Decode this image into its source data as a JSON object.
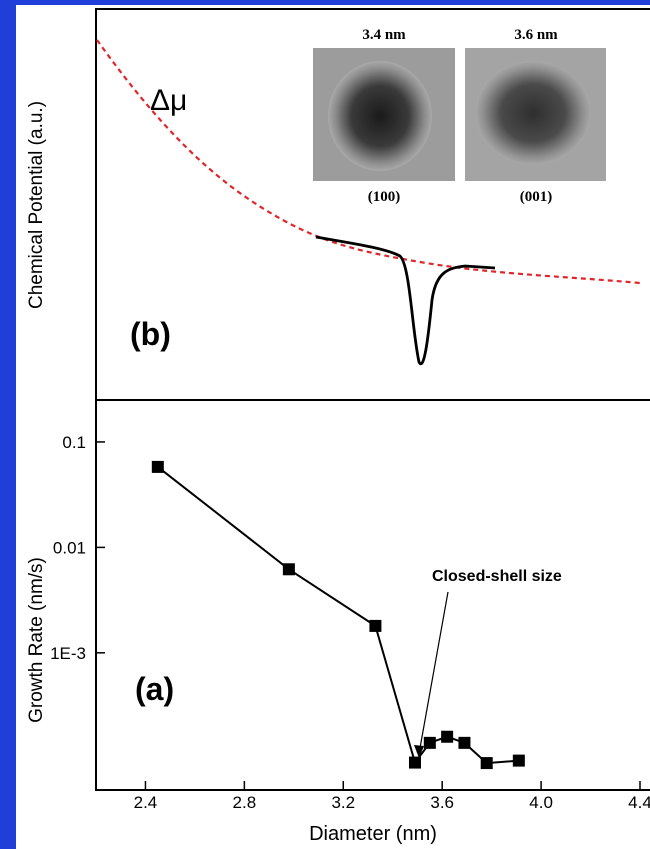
{
  "chart_data": {
    "type": "line",
    "x_label": "Diameter (nm)",
    "y_label": "Growth Rate (nm/s)",
    "panel_label": "(a)",
    "annotation": "Closed-shell size",
    "x": [
      2.45,
      2.98,
      3.33,
      3.49,
      3.55,
      3.62,
      3.69,
      3.78,
      3.91
    ],
    "values": [
      0.058,
      0.0062,
      0.0018,
      9.1e-05,
      0.00014,
      0.00016,
      0.00014,
      9e-05,
      9.5e-05
    ],
    "color": "#000000",
    "log_scale": true,
    "xlim": [
      2.2,
      4.4
    ],
    "xticks": [
      2.4,
      2.8,
      3.2,
      3.6,
      {
        "value": 4,
        "label": "4.0"
      },
      4.4
    ],
    "ylim": [
      5e-05,
      0.25
    ],
    "yticks": [
      0.1,
      0.01,
      {
        "value": 0.001,
        "label": "1E-3"
      }
    ]
  },
  "top_panel": {
    "y_label": "Chemical Potential (a.u.)",
    "panel_label": "(b)",
    "curve_label": "Δμ",
    "insets": [
      {
        "size": "3.4 nm",
        "facet": "(100)"
      },
      {
        "size": "3.6 nm",
        "facet": "(001)"
      }
    ]
  }
}
